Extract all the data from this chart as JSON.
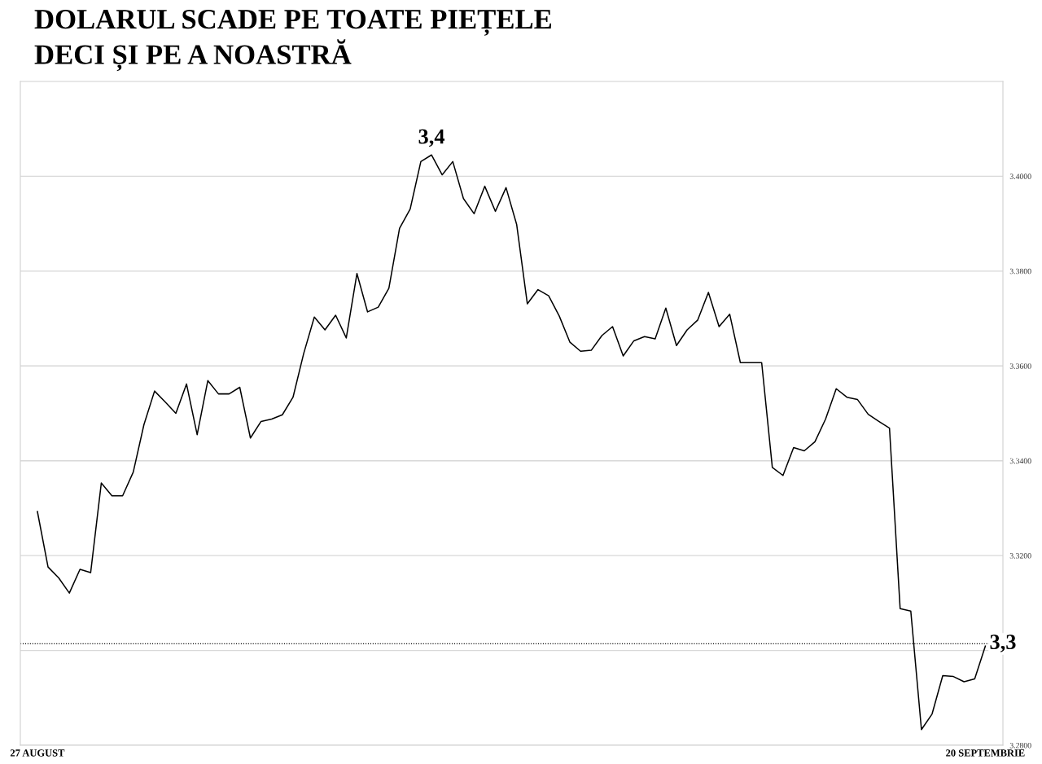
{
  "chart_data": {
    "type": "line",
    "title": "DOLARUL SCADE PE TOATE PIEȚELE\nDECI ȘI PE A NOASTRĂ",
    "categories": [
      "27 AUGUST",
      null,
      null,
      null,
      null,
      null,
      null,
      null,
      null,
      null,
      null,
      null,
      null,
      null,
      null,
      null,
      null,
      null,
      null,
      null,
      null,
      null,
      null,
      null,
      null,
      null,
      null,
      null,
      null,
      null,
      null,
      null,
      null,
      null,
      null,
      null,
      null,
      null,
      null,
      null,
      null,
      null,
      null,
      null,
      null,
      null,
      null,
      null,
      null,
      null,
      null,
      null,
      null,
      null,
      null,
      null,
      null,
      null,
      null,
      null,
      null,
      null,
      null,
      null,
      null,
      null,
      null,
      null,
      null,
      null,
      null,
      null,
      null,
      null,
      null,
      null,
      null,
      null,
      null,
      null,
      null,
      null,
      null,
      null,
      null,
      null,
      null,
      null,
      null,
      "20 SEPTEMBRIE"
    ],
    "series": [
      {
        "color": "#000000",
        "values": [
          3.3293,
          3.3176,
          3.3153,
          3.3121,
          3.3171,
          3.3164,
          3.3353,
          3.3326,
          3.3326,
          3.3376,
          3.3476,
          3.3547,
          3.3524,
          3.35,
          3.3562,
          3.3455,
          3.3569,
          3.3541,
          3.3541,
          3.3555,
          3.3448,
          3.3483,
          3.3488,
          3.3497,
          3.3534,
          3.3626,
          3.3703,
          3.3676,
          3.3707,
          3.3659,
          3.3795,
          3.3714,
          3.3724,
          3.3764,
          3.389,
          3.3931,
          3.4031,
          3.4045,
          3.4003,
          3.4031,
          3.3953,
          3.3921,
          3.3979,
          3.3926,
          3.3976,
          3.3898,
          3.3731,
          3.3761,
          3.3748,
          3.3705,
          3.365,
          3.3631,
          3.3633,
          3.3664,
          3.3683,
          3.3621,
          3.3653,
          3.3662,
          3.3657,
          3.3722,
          3.3643,
          3.3676,
          3.3697,
          3.3755,
          3.3683,
          3.3709,
          3.3607,
          3.3607,
          3.3607,
          3.3386,
          3.3369,
          3.3428,
          3.3421,
          3.344,
          3.3488,
          3.3552,
          3.3534,
          3.3529,
          3.3498,
          3.3483,
          3.3469,
          3.3088,
          3.3083,
          3.2833,
          3.2866,
          3.2947,
          3.2945,
          3.2934,
          3.294,
          3.3009
        ]
      }
    ],
    "ylim": [
      3.28,
      3.42
    ],
    "yticks": [
      {
        "value": 3.28,
        "label": "3.2800"
      },
      {
        "value": 3.3,
        "label": null
      },
      {
        "value": 3.32,
        "label": "3.3200"
      },
      {
        "value": 3.34,
        "label": "3.3400"
      },
      {
        "value": 3.36,
        "label": "3.3600"
      },
      {
        "value": 3.38,
        "label": "3.3800"
      },
      {
        "value": 3.4,
        "label": "3.4000"
      }
    ],
    "grid": "y",
    "ref_lines": [
      {
        "axis": "y",
        "value": 3.3014,
        "label": "3,3",
        "line_style": "dotted",
        "color": "#000000"
      }
    ],
    "annotations": [
      {
        "text": "3,4",
        "y": 3.4045
      }
    ]
  }
}
